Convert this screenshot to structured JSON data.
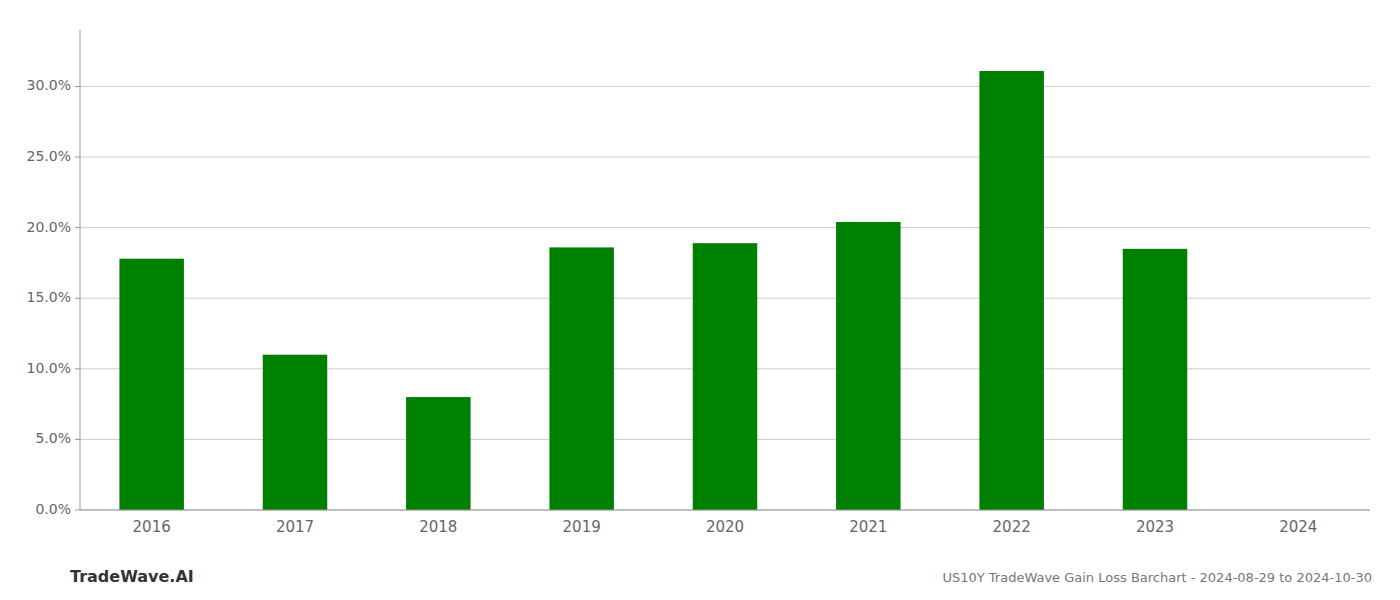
{
  "chart_data": {
    "type": "bar",
    "title": "US10Y TradeWave Gain Loss Barchart - 2024-08-29 to 2024-10-30",
    "annotations": [
      "TradeWave.AI"
    ],
    "categories": [
      "2016",
      "2017",
      "2018",
      "2019",
      "2020",
      "2021",
      "2022",
      "2023",
      "2024"
    ],
    "values": [
      0.178,
      0.11,
      0.08,
      0.186,
      0.189,
      0.204,
      0.311,
      0.185,
      0.0
    ],
    "color": "#008000",
    "ylim": [
      0,
      0.34
    ],
    "yticks": [
      {
        "value": 0.0,
        "label": "0.0%"
      },
      {
        "value": 0.05,
        "label": "5.0%"
      },
      {
        "value": 0.1,
        "label": "10.0%"
      },
      {
        "value": 0.15,
        "label": "15.0%"
      },
      {
        "value": 0.2,
        "label": "20.0%"
      },
      {
        "value": 0.25,
        "label": "25.0%"
      },
      {
        "value": 0.3,
        "label": "30.0%"
      }
    ],
    "grid": true
  }
}
